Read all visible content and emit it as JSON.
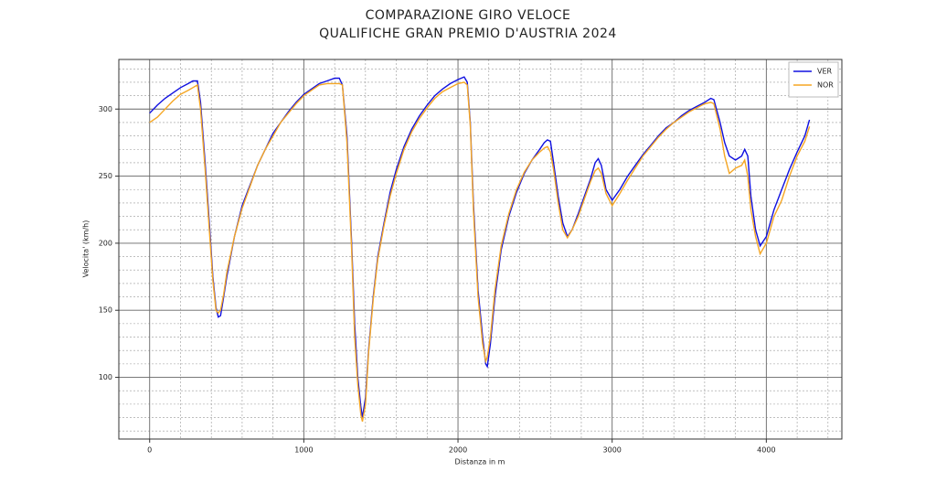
{
  "chart_data": {
    "type": "line",
    "title": "COMPARAZIONE GIRO VELOCE",
    "subtitle": "QUALIFICHE GRAN PREMIO D'AUSTRIA 2024",
    "x_label": "Distanza in m",
    "y_label": "Velocita' (km/h)",
    "xlim": [
      -200,
      4490
    ],
    "ylim": [
      54,
      337
    ],
    "xticks": [
      0,
      1000,
      2000,
      3000,
      4000
    ],
    "yticks": [
      100,
      150,
      200,
      250,
      300
    ],
    "xminorticks": [
      -200,
      200,
      400,
      600,
      800,
      1200,
      1400,
      1600,
      1800,
      2200,
      2400,
      2600,
      2800,
      3200,
      3400,
      3600,
      3800,
      4200,
      4400
    ],
    "yminorticks": [
      60,
      70,
      80,
      90,
      110,
      120,
      130,
      140,
      160,
      170,
      180,
      190,
      210,
      220,
      230,
      240,
      260,
      270,
      280,
      290,
      310,
      320,
      330
    ],
    "grid": true,
    "legend_position": "upper-right",
    "x": [
      0,
      50,
      100,
      150,
      200,
      250,
      280,
      310,
      330,
      360,
      390,
      410,
      430,
      445,
      460,
      480,
      500,
      550,
      600,
      650,
      700,
      750,
      800,
      850,
      900,
      950,
      1000,
      1050,
      1100,
      1150,
      1200,
      1230,
      1250,
      1280,
      1310,
      1330,
      1350,
      1370,
      1380,
      1400,
      1420,
      1450,
      1480,
      1520,
      1560,
      1600,
      1650,
      1700,
      1750,
      1800,
      1850,
      1900,
      1950,
      2000,
      2040,
      2060,
      2080,
      2100,
      2130,
      2160,
      2180,
      2190,
      2210,
      2240,
      2280,
      2330,
      2380,
      2430,
      2480,
      2530,
      2560,
      2580,
      2600,
      2620,
      2650,
      2680,
      2710,
      2740,
      2780,
      2820,
      2860,
      2890,
      2910,
      2930,
      2960,
      3000,
      3050,
      3100,
      3150,
      3200,
      3250,
      3300,
      3350,
      3400,
      3450,
      3500,
      3550,
      3600,
      3640,
      3660,
      3700,
      3730,
      3760,
      3800,
      3840,
      3860,
      3880,
      3900,
      3930,
      3960,
      4000,
      4050,
      4100,
      4150,
      4200,
      4250,
      4280
    ],
    "series": [
      {
        "name": "VER",
        "color": "#1010e0",
        "values": [
          297,
          303,
          308,
          312,
          316,
          319,
          321,
          321,
          305,
          260,
          210,
          175,
          152,
          145,
          146,
          160,
          175,
          205,
          228,
          243,
          258,
          270,
          282,
          290,
          298,
          305,
          311,
          315,
          319,
          321,
          323,
          323,
          318,
          280,
          200,
          140,
          100,
          78,
          70,
          85,
          120,
          160,
          190,
          215,
          238,
          255,
          272,
          285,
          295,
          303,
          310,
          315,
          319,
          322,
          324,
          320,
          290,
          230,
          165,
          130,
          110,
          108,
          125,
          160,
          195,
          220,
          238,
          252,
          262,
          270,
          275,
          277,
          276,
          260,
          235,
          215,
          205,
          210,
          222,
          235,
          248,
          260,
          263,
          258,
          240,
          232,
          240,
          250,
          258,
          266,
          273,
          280,
          286,
          290,
          295,
          299,
          302,
          305,
          308,
          307,
          290,
          275,
          265,
          262,
          265,
          270,
          265,
          235,
          210,
          198,
          205,
          225,
          240,
          255,
          268,
          280,
          292
        ]
      },
      {
        "name": "NOR",
        "color": "#f5a623",
        "values": [
          290,
          294,
          300,
          306,
          311,
          314,
          316,
          318,
          300,
          255,
          205,
          172,
          150,
          148,
          150,
          162,
          178,
          205,
          226,
          242,
          258,
          270,
          280,
          290,
          297,
          304,
          310,
          314,
          318,
          319,
          319,
          319,
          318,
          275,
          195,
          130,
          95,
          72,
          67,
          80,
          118,
          158,
          188,
          213,
          235,
          252,
          270,
          283,
          293,
          301,
          308,
          313,
          316,
          319,
          320,
          318,
          288,
          225,
          160,
          125,
          112,
          115,
          130,
          165,
          198,
          222,
          240,
          253,
          262,
          268,
          271,
          272,
          268,
          255,
          230,
          210,
          204,
          210,
          220,
          233,
          246,
          254,
          256,
          252,
          237,
          228,
          237,
          247,
          256,
          265,
          272,
          279,
          285,
          290,
          294,
          298,
          301,
          304,
          305,
          304,
          285,
          265,
          252,
          256,
          258,
          262,
          250,
          225,
          205,
          192,
          200,
          220,
          232,
          250,
          265,
          276,
          287
        ]
      }
    ]
  }
}
